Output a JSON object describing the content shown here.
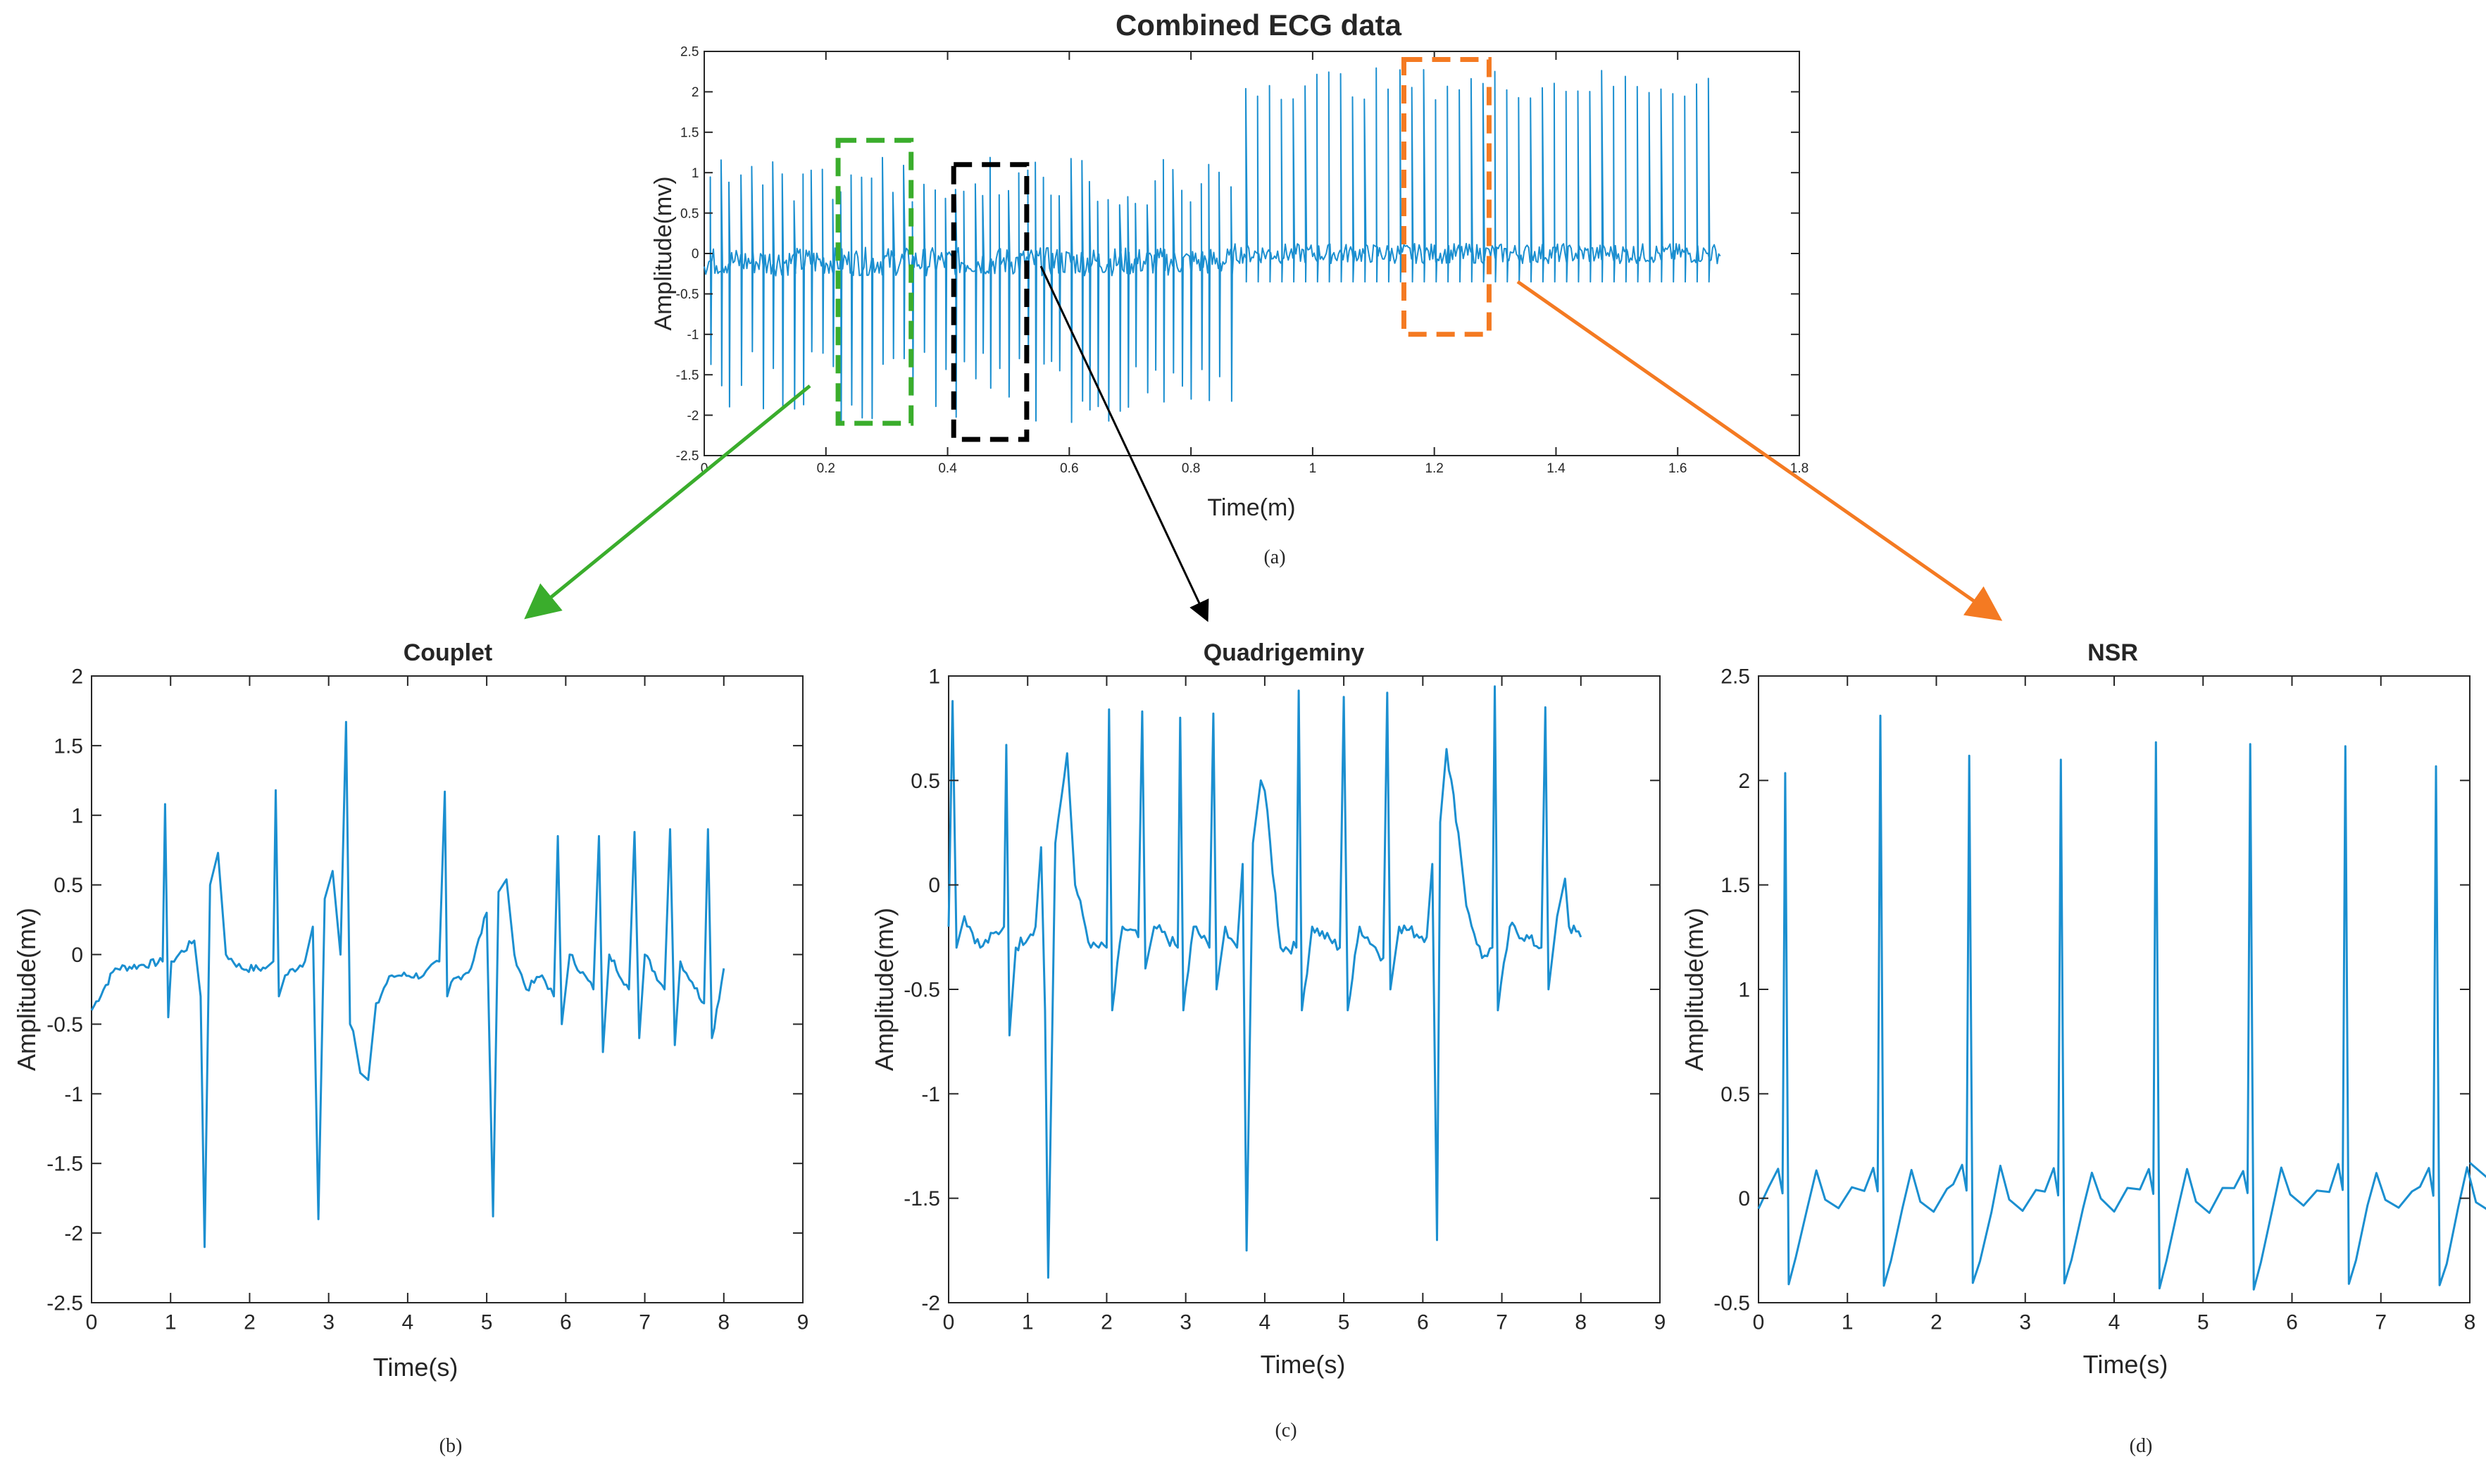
{
  "colors": {
    "signal": "#1b8fd0",
    "axis": "#262626",
    "green_box": "#3aad2c",
    "black_box": "#000000",
    "orange_box": "#f47a22"
  },
  "chart_data": [
    {
      "id": "a",
      "type": "line",
      "title": "Combined ECG data",
      "xlabel": "Time(m)",
      "ylabel": "Amplitude(mv)",
      "caption": "(a)",
      "xlim": [
        0,
        1.8
      ],
      "ylim": [
        -2.5,
        2.5
      ],
      "xticks": [
        "0",
        "0.2",
        "0.4",
        "0.6",
        "0.8",
        "1",
        "1.2",
        "1.4",
        "1.6",
        "1.8"
      ],
      "yticks": [
        "-2.5",
        "-2",
        "-1.5",
        "-1",
        "-0.5",
        "0",
        "0.5",
        "1",
        "1.5",
        "2",
        "2.5"
      ],
      "signal_end": 1.67,
      "segments": [
        {
          "name": "Couplet",
          "color": "green",
          "x_range": [
            0.22,
            0.34
          ],
          "y_range": [
            -2.1,
            1.4
          ]
        },
        {
          "name": "Quadrigeminy",
          "color": "black",
          "x_range": [
            0.41,
            0.53
          ],
          "y_range": [
            -2.3,
            1.1
          ]
        },
        {
          "name": "NSR",
          "color": "orange",
          "x_range": [
            1.15,
            1.29
          ],
          "y_range": [
            -1.0,
            2.4
          ]
        }
      ]
    },
    {
      "id": "b",
      "type": "line",
      "title": "Couplet",
      "xlabel": "Time(s)",
      "ylabel": "Amplitude(mv)",
      "caption": "(b)",
      "xlim": [
        0,
        9
      ],
      "ylim": [
        -2.5,
        2
      ],
      "xticks": [
        "0",
        "1",
        "2",
        "3",
        "4",
        "5",
        "6",
        "7",
        "8",
        "9"
      ],
      "yticks": [
        "-2.5",
        "-2",
        "-1.5",
        "-1",
        "-0.5",
        "0",
        "0.5",
        "1",
        "1.5",
        "2"
      ],
      "series": [
        {
          "name": "Couplet ECG",
          "x": [
            0,
            0.3,
            0.6,
            0.9,
            0.93,
            0.97,
            1.01,
            1.3,
            1.38,
            1.43,
            1.5,
            1.6,
            1.7,
            1.9,
            2.2,
            2.3,
            2.33,
            2.37,
            2.45,
            2.7,
            2.8,
            2.87,
            2.95,
            3.05,
            3.15,
            3.22,
            3.27,
            3.31,
            3.4,
            3.5,
            3.6,
            3.8,
            4.2,
            4.4,
            4.47,
            4.5,
            4.55,
            4.8,
            5.0,
            5.08,
            5.15,
            5.25,
            5.35,
            5.5,
            5.7,
            5.85,
            5.9,
            5.95,
            6.05,
            6.35,
            6.42,
            6.47,
            6.55,
            6.8,
            6.87,
            6.93,
            7.0,
            7.25,
            7.32,
            7.38,
            7.45,
            7.6,
            7.75,
            7.8,
            7.85,
            8.0
          ],
          "y": [
            -0.4,
            -0.1,
            -0.08,
            -0.05,
            1.08,
            -0.45,
            -0.05,
            0.1,
            -0.3,
            -2.1,
            0.5,
            0.73,
            0.0,
            -0.1,
            -0.1,
            -0.05,
            1.18,
            -0.3,
            -0.15,
            -0.05,
            0.2,
            -1.9,
            0.4,
            0.6,
            0.0,
            1.67,
            -0.5,
            -0.55,
            -0.85,
            -0.9,
            -0.35,
            -0.15,
            -0.15,
            -0.05,
            1.17,
            -0.3,
            -0.2,
            -0.1,
            0.3,
            -1.88,
            0.45,
            0.54,
            0.0,
            -0.25,
            -0.15,
            -0.3,
            0.85,
            -0.5,
            0.0,
            -0.25,
            0.85,
            -0.7,
            0.0,
            -0.25,
            0.88,
            -0.6,
            0.0,
            -0.25,
            0.9,
            -0.65,
            -0.05,
            -0.2,
            -0.35,
            0.9,
            -0.6,
            -0.1
          ]
        }
      ]
    },
    {
      "id": "c",
      "type": "line",
      "title": "Quadrigeminy",
      "xlabel": "Time(s)",
      "ylabel": "Amplitude(mv)",
      "caption": "(c)",
      "xlim": [
        0,
        9
      ],
      "ylim": [
        -2,
        1
      ],
      "xticks": [
        "0",
        "1",
        "2",
        "3",
        "4",
        "5",
        "6",
        "7",
        "8",
        "9"
      ],
      "yticks": [
        "-2",
        "-1.5",
        "-1",
        "-0.5",
        "0",
        "0.5",
        "1"
      ],
      "series": [
        {
          "name": "Quadrigeminy ECG",
          "x": [
            0,
            0.05,
            0.1,
            0.2,
            0.4,
            0.7,
            0.73,
            0.77,
            0.85,
            1.1,
            1.17,
            1.22,
            1.26,
            1.35,
            1.5,
            1.6,
            1.8,
            2.0,
            2.03,
            2.07,
            2.2,
            2.4,
            2.45,
            2.49,
            2.6,
            2.9,
            2.93,
            2.97,
            3.1,
            3.3,
            3.35,
            3.39,
            3.5,
            3.65,
            3.72,
            3.77,
            3.85,
            3.95,
            4.0,
            4.2,
            4.4,
            4.43,
            4.47,
            4.6,
            4.95,
            5.0,
            5.05,
            5.2,
            5.5,
            5.55,
            5.59,
            5.7,
            6.05,
            6.12,
            6.18,
            6.22,
            6.3,
            6.45,
            6.55,
            6.75,
            6.88,
            6.91,
            6.95,
            7.1,
            7.5,
            7.55,
            7.59,
            7.7,
            7.8,
            7.85,
            8.0
          ],
          "y": [
            -0.2,
            0.88,
            -0.3,
            -0.15,
            -0.3,
            -0.2,
            0.67,
            -0.72,
            -0.3,
            -0.2,
            0.18,
            -0.6,
            -1.88,
            0.2,
            0.63,
            0.0,
            -0.3,
            -0.3,
            0.84,
            -0.6,
            -0.2,
            -0.25,
            0.83,
            -0.4,
            -0.2,
            -0.3,
            0.8,
            -0.6,
            -0.2,
            -0.3,
            0.82,
            -0.5,
            -0.2,
            -0.3,
            0.1,
            -1.75,
            0.2,
            0.5,
            0.45,
            -0.3,
            -0.3,
            0.93,
            -0.6,
            -0.2,
            -0.3,
            0.9,
            -0.6,
            -0.2,
            -0.35,
            0.92,
            -0.5,
            -0.2,
            -0.25,
            0.1,
            -1.7,
            0.3,
            0.65,
            0.25,
            -0.1,
            -0.35,
            -0.3,
            0.95,
            -0.6,
            -0.2,
            -0.3,
            0.85,
            -0.5,
            -0.15,
            0.03,
            -0.2,
            -0.25
          ]
        }
      ]
    },
    {
      "id": "d",
      "type": "line",
      "title": "NSR",
      "xlabel": "Time(s)",
      "ylabel": "Amplitude(mv)",
      "caption": "(d)",
      "xlim": [
        0,
        8
      ],
      "ylim": [
        -0.5,
        2.5
      ],
      "xticks": [
        "0",
        "1",
        "2",
        "3",
        "4",
        "5",
        "6",
        "7",
        "8"
      ],
      "yticks": [
        "-0.5",
        "0",
        "0.5",
        "1",
        "1.5",
        "2",
        "2.5"
      ],
      "series": [
        {
          "name": "NSR ECG",
          "beats": [
            0.3,
            1.37,
            2.37,
            3.4,
            4.47,
            5.53,
            6.6,
            7.62
          ],
          "peaks": [
            2.05,
            2.3,
            2.12,
            2.08,
            2.18,
            2.19,
            2.15,
            2.05
          ],
          "end": 8.0,
          "end_value": 0.17
        }
      ]
    }
  ]
}
